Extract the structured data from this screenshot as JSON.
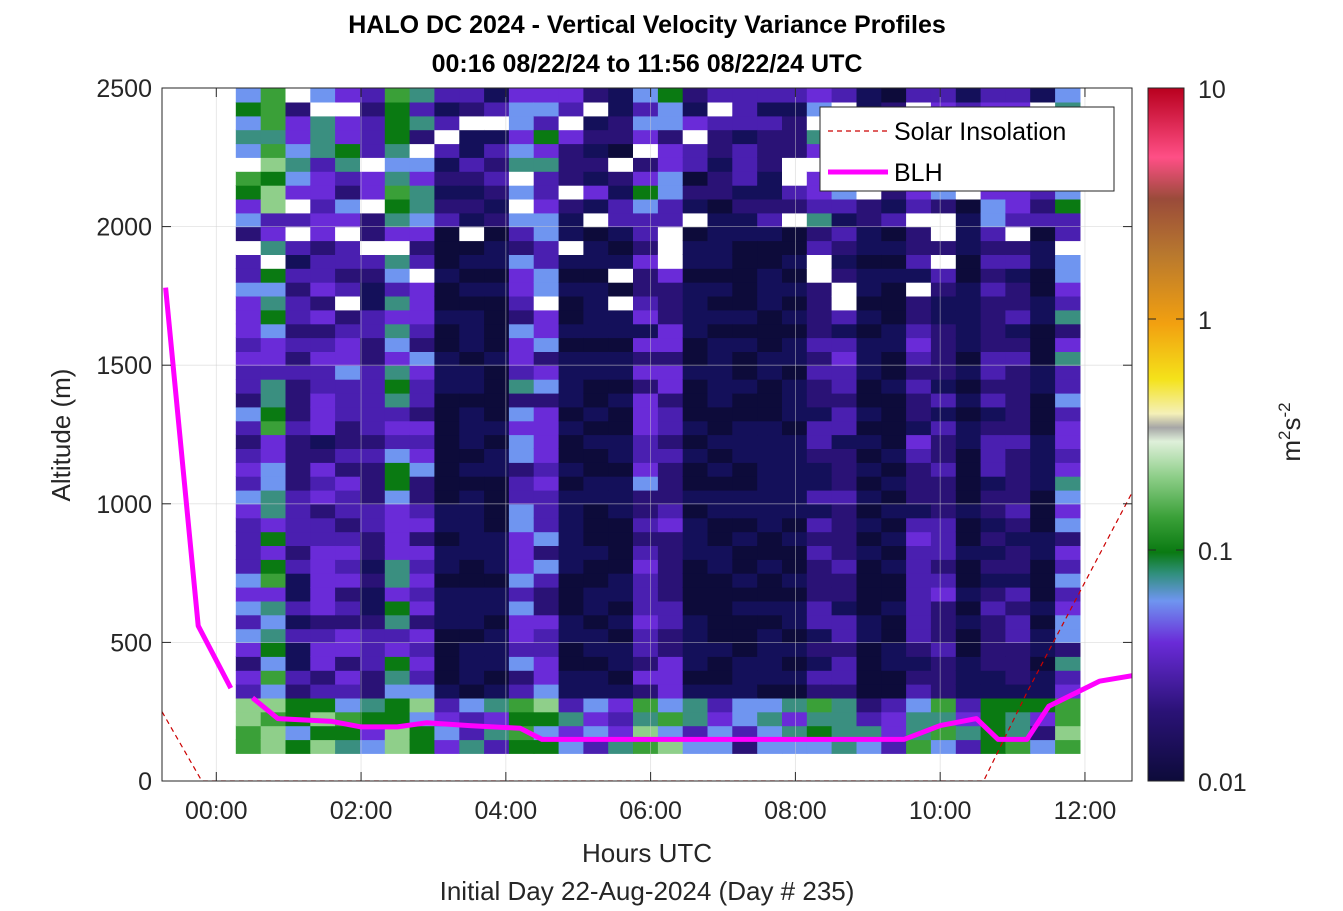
{
  "chart_data": {
    "type": "heatmap",
    "title": "HALO DC 2024 - Vertical Velocity Variance Profiles",
    "subtitle": "00:16 08/22/24 to 11:56 08/22/24  UTC",
    "xlabel": "Hours UTC",
    "ylabel": "Altitude (m)",
    "footer": "Initial Day 22-Aug-2024 (Day # 235)",
    "xlim": [
      -0.75,
      12.65
    ],
    "ylim": [
      0,
      2500
    ],
    "x_ticks": [
      0,
      2,
      4,
      6,
      8,
      10,
      12
    ],
    "x_tick_labels": [
      "00:00",
      "02:00",
      "04:00",
      "06:00",
      "08:00",
      "10:00",
      "12:00"
    ],
    "y_ticks": [
      0,
      500,
      1000,
      1500,
      2000,
      2500
    ],
    "y_tick_labels": [
      "0",
      "500",
      "1000",
      "1500",
      "2000",
      "2500"
    ],
    "grid": true,
    "legend_position": "top-right",
    "colorbar": {
      "scale": "log",
      "min": 0.01,
      "max": 10,
      "ticks": [
        0.01,
        0.1,
        1,
        10
      ],
      "tick_labels": [
        "0.01",
        "0.1",
        "1",
        "10"
      ],
      "label_base": "m",
      "label_sup1": "2",
      "label_mid": "s",
      "label_sup2": "-2"
    },
    "heatmap": {
      "x_start": 0.27,
      "x_end": 11.93,
      "y_start": 100,
      "y_end": 2500,
      "n_cols": 34,
      "n_rows": 48,
      "note_values": "variance sampled as background ~0.015 m2s-2 with enhanced columns near 00:30-01:30, 02:45, 04:15, 06:15, 08:30, 10:00 and 11:45"
    },
    "series": [
      {
        "name": "Solar Insolation",
        "style": "dashed",
        "color": "#cc0000",
        "x": [
          -0.75,
          -0.2,
          10.6,
          11.2,
          12.65
        ],
        "y": [
          250,
          0,
          0,
          320,
          1040
        ]
      },
      {
        "name": "BLH",
        "style": "solid",
        "color": "#ff00ff",
        "segments": [
          {
            "x": [
              -0.7,
              -0.25,
              0.2
            ],
            "y": [
              1780,
              560,
              335
            ]
          },
          {
            "x": [
              0.5,
              0.85,
              1.6,
              2.0,
              2.5,
              2.9,
              3.5,
              4.2,
              4.5,
              5.5,
              6.5,
              7.5,
              8.5,
              9.5,
              10.0,
              10.5,
              10.8,
              11.2,
              11.5,
              12.2,
              12.65
            ],
            "y": [
              300,
              225,
              215,
              195,
              195,
              210,
              200,
              190,
              150,
              150,
              150,
              150,
              150,
              150,
              200,
              225,
              150,
              150,
              270,
              360,
              380
            ]
          }
        ]
      }
    ]
  }
}
